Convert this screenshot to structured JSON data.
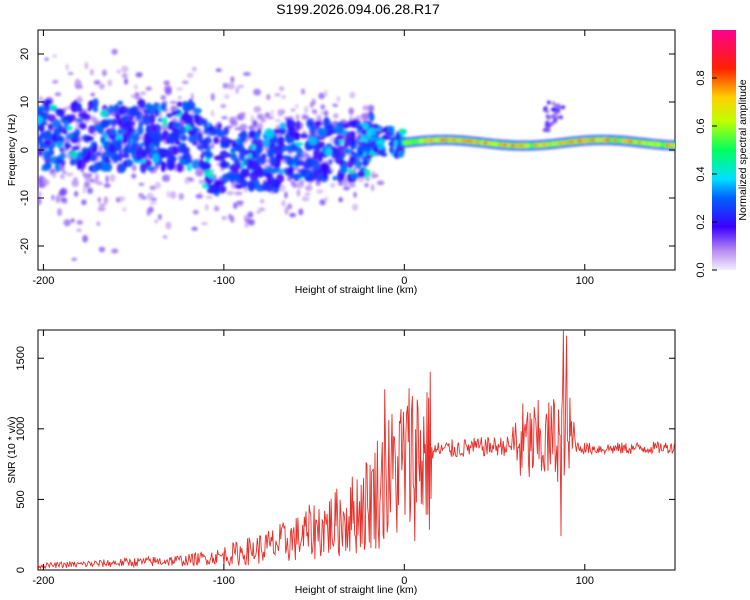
{
  "title": "S199.2026.094.06.28.R17",
  "chart_data": [
    {
      "type": "heatmap",
      "xlabel": "Height of straight line (km)",
      "ylabel": "Frequency (Hz)",
      "xlim": [
        -203,
        150
      ],
      "ylim": [
        -25,
        25
      ],
      "xticks": [
        -200,
        -100,
        0,
        100
      ],
      "yticks": [
        -20,
        -10,
        0,
        10,
        20
      ],
      "colorbar": {
        "label": "Normalized spectral amplitude",
        "range": [
          0,
          1
        ],
        "ticks": [
          "0.0",
          "0.2",
          "0.4",
          "0.6",
          "0.8"
        ]
      },
      "description_points": {
        "diffuse_region_x": [
          -203,
          -20
        ],
        "coherent_line_x": [
          -20,
          150
        ],
        "line_frequency_hz": 1.5
      }
    },
    {
      "type": "line",
      "xlabel": "Height of straight line (km)",
      "ylabel": "SNR (10 * v/v)",
      "xlim": [
        -203,
        150
      ],
      "ylim": [
        0,
        1700
      ],
      "xticks": [
        -200,
        -100,
        0,
        100
      ],
      "yticks": [
        0,
        500,
        1000,
        1500
      ],
      "color": "#e8302a",
      "series": [
        {
          "x": [
            -203,
            -180,
            -160,
            -140,
            -120,
            -100,
            -80,
            -60,
            -50,
            -40,
            -30,
            -20,
            -15,
            -10,
            -5,
            0,
            5,
            10,
            20,
            30,
            40,
            60,
            70,
            80,
            85,
            88,
            90,
            95,
            100,
            120,
            150
          ],
          "values": [
            30,
            40,
            50,
            60,
            70,
            100,
            150,
            220,
            280,
            320,
            380,
            480,
            560,
            620,
            700,
            760,
            800,
            830,
            850,
            860,
            870,
            880,
            890,
            900,
            950,
            1000,
            950,
            880,
            860,
            860,
            870
          ]
        }
      ],
      "spikes": [
        {
          "x": -11,
          "value": 1280
        },
        {
          "x": 88,
          "value": 1700
        },
        {
          "x": 90,
          "value": 1660
        },
        {
          "x": 87,
          "value": 240
        }
      ]
    }
  ]
}
